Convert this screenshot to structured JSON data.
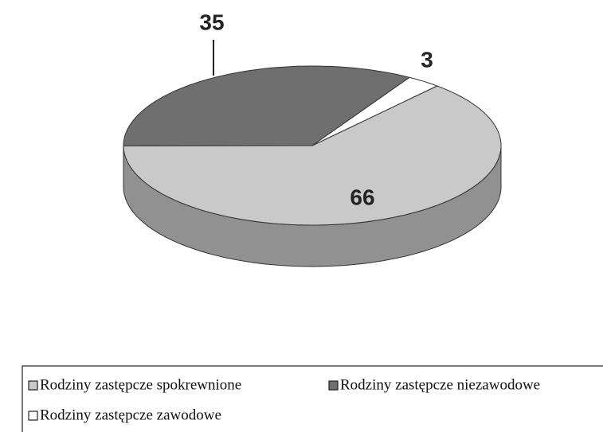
{
  "chart_data": {
    "type": "pie",
    "categories": [
      "Rodziny zastępcze spokrewnione",
      "Rodziny zastępcze niezawodowe",
      "Rodziny zastępcze zawodowe"
    ],
    "values": [
      66,
      35,
      3
    ],
    "colors": [
      "#c9c9c9",
      "#6f6f6f",
      "#ffffff"
    ]
  }
}
